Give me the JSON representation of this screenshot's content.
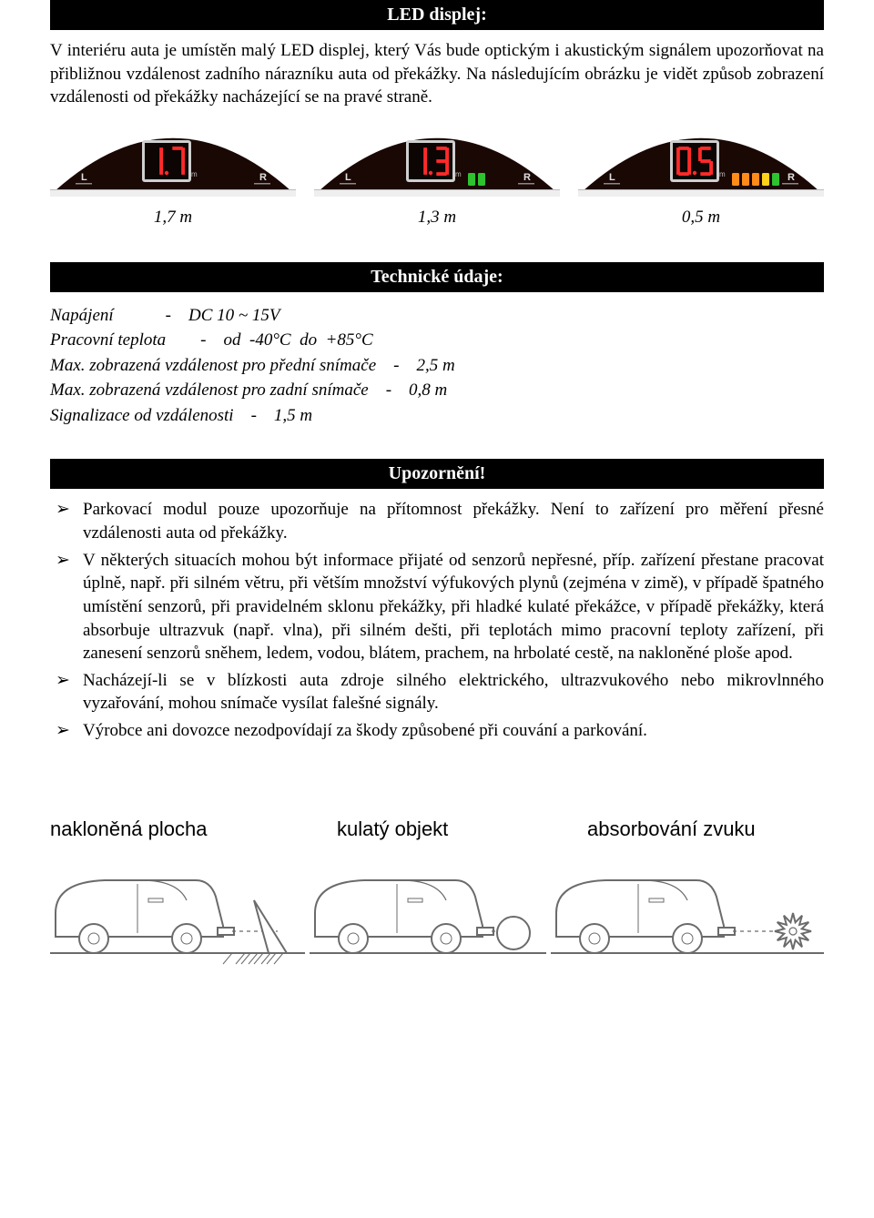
{
  "page": {
    "background": "#ffffff",
    "text_color": "#000000",
    "header_bg": "#000000",
    "header_fg": "#ffffff"
  },
  "section1": {
    "title": "LED displej:",
    "paragraph": "V interiéru auta je umístěn malý LED displej, který Vás bude optickým i akustickým signálem upozorňovat na přibližnou vzdálenost zadního nárazníku auta od překážky. Na následujícím obrázku je vidět způsob zobrazení vzdálenosti od překážky nacházející se na pravé straně."
  },
  "displays": [
    {
      "value": "1.7",
      "distance_label": "1,7 m",
      "housing_color": "#1a0805",
      "bezel_color": "#0d0503",
      "digit_color": "#ff2a2a",
      "lr_color": "#e0e0e0",
      "leds": []
    },
    {
      "value": "1.3",
      "distance_label": "1,3 m",
      "housing_color": "#1a0805",
      "bezel_color": "#0d0503",
      "digit_color": "#ff2a2a",
      "lr_color": "#e0e0e0",
      "leds": [
        "#2ec22e",
        "#2ec22e"
      ]
    },
    {
      "value": "0.5",
      "distance_label": "0,5 m",
      "housing_color": "#1a0805",
      "bezel_color": "#0d0503",
      "digit_color": "#ff2a2a",
      "lr_color": "#e0e0e0",
      "leds": [
        "#ff8c1a",
        "#ff8c1a",
        "#ff8c1a",
        "#ffd11a",
        "#2ec22e"
      ]
    }
  ],
  "section2": {
    "title": "Technické údaje:",
    "specs": [
      "Napájení\t\t\t-\tDC 10 ~ 15V",
      "Pracovní teplota\t\t-\tod  -40°C  do  +85°C",
      "Max. zobrazená vzdálenost pro přední snímače\t-\t2,5 m",
      "Max. zobrazená vzdálenost pro zadní snímače\t-\t0,8 m",
      "Signalizace od vzdálenosti\t-\t1,5 m"
    ]
  },
  "section3": {
    "title": "Upozornění!",
    "bullets": [
      "Parkovací modul pouze upozorňuje na přítomnost překážky. Není to zařízení pro měření přesné vzdálenosti auta od překážky.",
      "V některých situacích mohou být informace přijaté od senzorů nepřesné, příp. zařízení přestane pracovat úplně, např. při silném větru, při větším množství výfukových plynů (zejména v zimě), v případě špatného umístění senzorů, při pravidelném sklonu překážky, při hladké kulaté překážce, v případě překážky, která absorbuje ultrazvuk (např. vlna), při silném dešti, při teplotách mimo pracovní teploty zařízení, při zanesení senzorů sněhem, ledem, vodou, blátem, prachem, na hrbolaté cestě, na nakloněné ploše apod.",
      "Nacházejí-li se v blízkosti auta zdroje silného elektrického, ultrazvukového nebo mikrovlnného vyzařování, mohou snímače vysílat falešné signály.",
      "Výrobce ani dovozce nezodpovídají za škody způsobené při couvání a parkování."
    ]
  },
  "bottom_labels": {
    "label1": "nakloněná plocha",
    "label2": "kulatý objekt",
    "label3": "absorbování zvuku"
  },
  "illustrations": {
    "stroke": "#6b6b6b",
    "fill": "#ffffff",
    "stroke_width": 2
  }
}
